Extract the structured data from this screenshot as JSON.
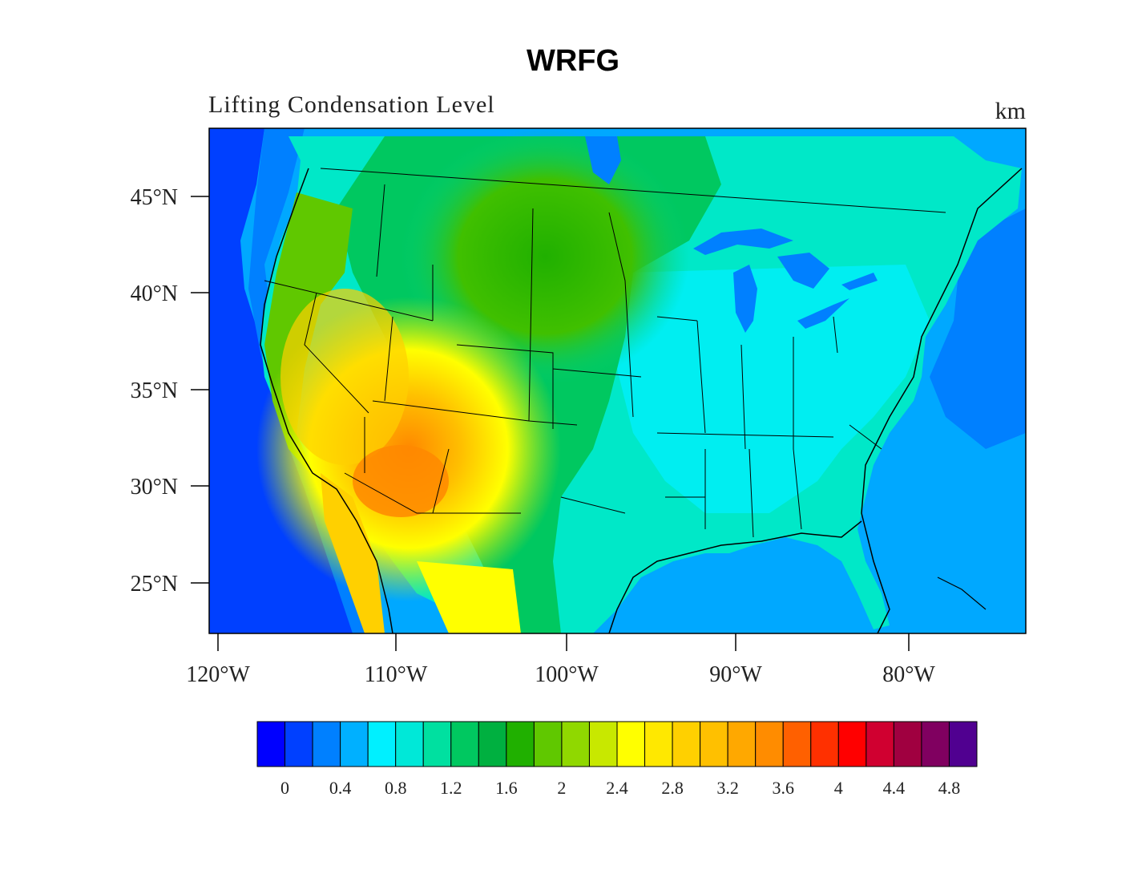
{
  "title": "WRFG",
  "subtitle": "Lifting Condensation Level",
  "units": "km",
  "map": {
    "region": "Contiguous United States",
    "lat_ticks": [
      "45°N",
      "40°N",
      "35°N",
      "30°N",
      "25°N"
    ],
    "lon_ticks": [
      "120°W",
      "110°W",
      "100°W",
      "90°W",
      "80°W"
    ],
    "ocean_color": "#00a0ff",
    "land_low_color": "#00e8c8",
    "land_high_color": "#ff8a00"
  },
  "colorbar": {
    "labels": [
      "0",
      "0.4",
      "0.8",
      "1.2",
      "1.6",
      "2",
      "2.4",
      "2.8",
      "3.2",
      "3.6",
      "4",
      "4.4",
      "4.8"
    ],
    "colors": [
      "#0000ff",
      "#0040ff",
      "#0080ff",
      "#00b0ff",
      "#00f0ff",
      "#00e8d8",
      "#00e0a0",
      "#00c860",
      "#00b040",
      "#20b000",
      "#60c800",
      "#90d800",
      "#c8e800",
      "#ffff00",
      "#ffe800",
      "#ffd000",
      "#ffc000",
      "#ffa800",
      "#ff8c00",
      "#ff6000",
      "#ff3000",
      "#ff0000",
      "#d00030",
      "#a00040",
      "#800060",
      "#500090"
    ]
  }
}
